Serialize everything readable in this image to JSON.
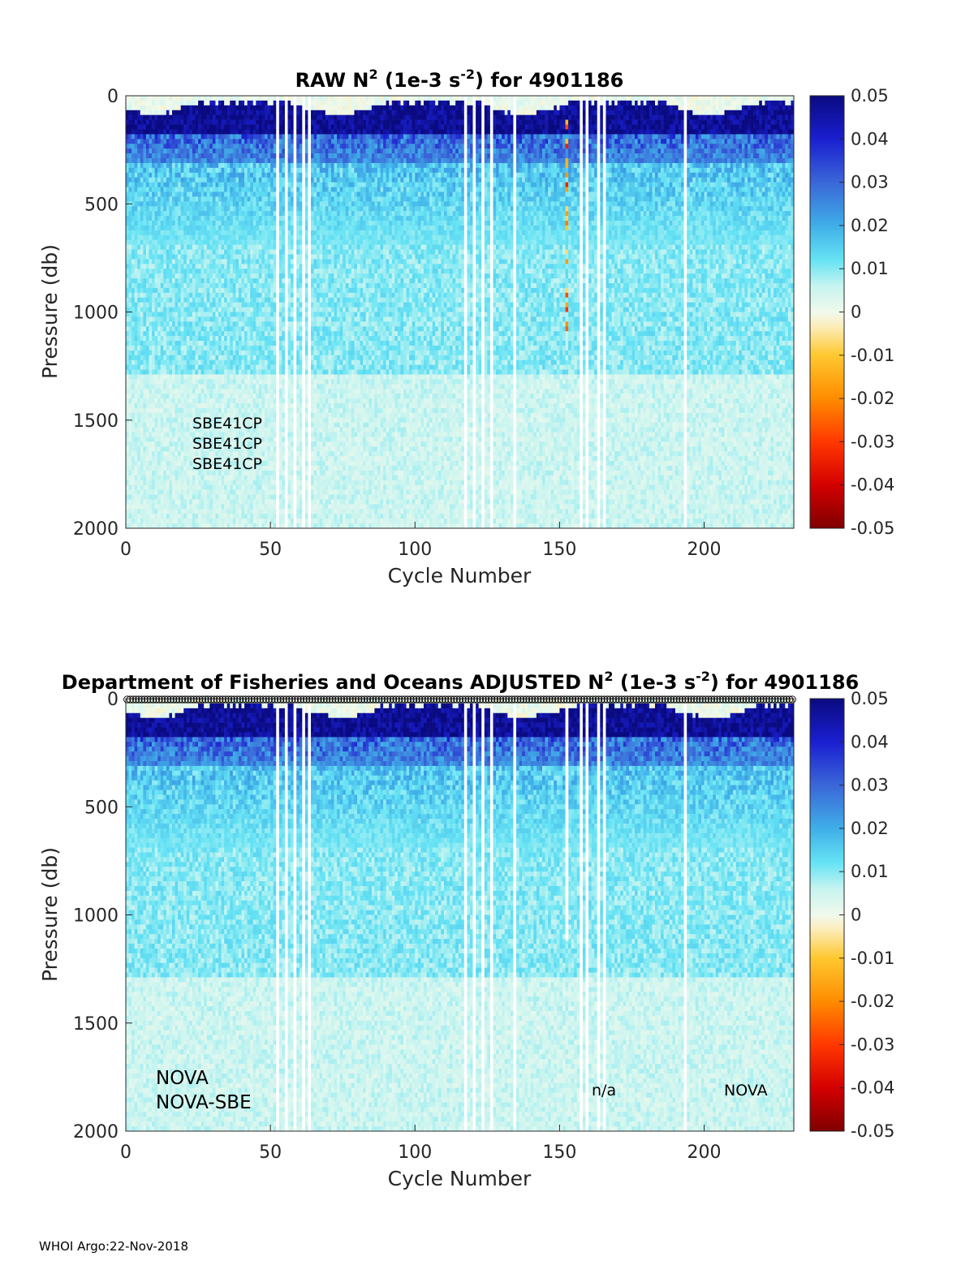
{
  "footer": "WHOI Argo:22-Nov-2018",
  "chart_data": [
    {
      "type": "heatmap",
      "title_prefix": "RAW N",
      "title_sup1": "2",
      "title_mid": " (1e-3 s",
      "title_sup2": "-2",
      "title_suffix": ") for 4901186",
      "xlabel": "Cycle Number",
      "ylabel": "Pressure (db)",
      "xlim": [
        0,
        231
      ],
      "ylim": [
        0,
        2000
      ],
      "y_reversed": true,
      "xticks": [
        "0",
        "50",
        "100",
        "150",
        "200"
      ],
      "yticks": [
        "0",
        "500",
        "1000",
        "1500",
        "2000"
      ],
      "colorbar": {
        "clim": [
          -0.05,
          0.05
        ],
        "ticks": [
          "0.05",
          "0.04",
          "0.03",
          "0.02",
          "0.01",
          "0",
          "-0.01",
          "-0.02",
          "-0.03",
          "-0.04",
          "-0.05"
        ],
        "colormap": "jet-like diverging (dark red - orange - cream - cyan - blue - dark blue)"
      },
      "missing_cycles": [
        53,
        56,
        59,
        62,
        64,
        118,
        121,
        124,
        127,
        135,
        158,
        160,
        164,
        166,
        194
      ],
      "anomalous_cycle": 153,
      "annotations": [
        "SBE41CP",
        "SBE41CP",
        "SBE41CP"
      ]
    },
    {
      "type": "heatmap",
      "title_prefix": "Department of Fisheries and Oceans  ADJUSTED N",
      "title_sup1": "2",
      "title_mid": " (1e-3 s",
      "title_sup2": "-2",
      "title_suffix": ") for 4901186",
      "xlabel": "Cycle Number",
      "ylabel": "Pressure (db)",
      "xlim": [
        0,
        231
      ],
      "ylim": [
        0,
        2000
      ],
      "y_reversed": true,
      "xticks": [
        "0",
        "50",
        "100",
        "150",
        "200"
      ],
      "yticks": [
        "0",
        "500",
        "1000",
        "1500",
        "2000"
      ],
      "colorbar": {
        "clim": [
          -0.05,
          0.05
        ],
        "ticks": [
          "0.05",
          "0.04",
          "0.03",
          "0.02",
          "0.01",
          "0",
          "-0.01",
          "-0.02",
          "-0.03",
          "-0.04",
          "-0.05"
        ],
        "colormap": "jet-like diverging (dark red - orange - cream - cyan - blue - dark blue)"
      },
      "missing_cycles": [
        53,
        56,
        59,
        62,
        64,
        118,
        121,
        124,
        127,
        135,
        158,
        160,
        164,
        166,
        194
      ],
      "flagged_cycle": 153,
      "flagged_cycle_max_pressure": 1120,
      "annotations": [
        "NOVA",
        "NOVA-SBE",
        "n/a",
        "NOVA"
      ]
    }
  ]
}
